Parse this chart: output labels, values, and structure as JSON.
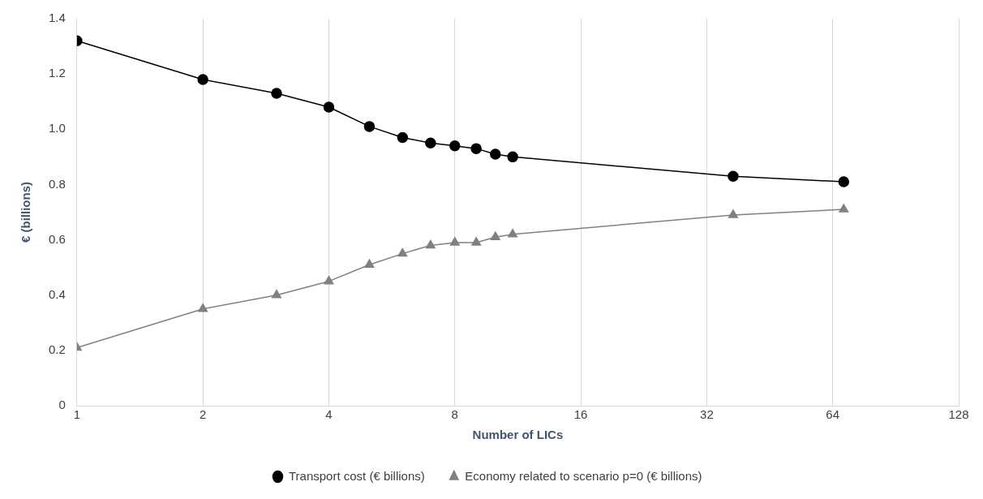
{
  "chart_data": {
    "type": "line",
    "xlabel": "Number of LICs",
    "ylabel": "€ (billions)",
    "x": [
      1,
      2,
      3,
      4,
      5,
      6,
      7,
      8,
      9,
      10,
      11,
      37,
      68
    ],
    "series": [
      {
        "name": "Transport cost (€ billions)",
        "color": "#000000",
        "marker": "circle",
        "values": [
          1.32,
          1.18,
          1.13,
          1.08,
          1.01,
          0.97,
          0.95,
          0.94,
          0.93,
          0.91,
          0.9,
          0.83,
          0.81
        ]
      },
      {
        "name": "Economy related to scenario p=0 (€ billions)",
        "color": "#808080",
        "marker": "triangle",
        "values": [
          0.21,
          0.35,
          0.4,
          0.45,
          0.51,
          0.55,
          0.58,
          0.59,
          0.59,
          0.61,
          0.62,
          0.69,
          0.71
        ]
      }
    ],
    "log": "x",
    "xlim": [
      1,
      128
    ],
    "xticks": [
      1,
      2,
      4,
      8,
      16,
      32,
      64,
      128
    ],
    "ylim": [
      0,
      1.4
    ],
    "yticks": [
      0,
      {
        "value": 0.2,
        "label": "0.2"
      },
      {
        "value": 0.4,
        "label": "0.4"
      },
      {
        "value": 0.6,
        "label": "0.6"
      },
      {
        "value": 0.8,
        "label": "0.8"
      },
      {
        "value": 1.0,
        "label": "1.0"
      },
      {
        "value": 1.2,
        "label": "1.2"
      },
      {
        "value": 1.4,
        "label": "1.4"
      }
    ],
    "grid": "x",
    "legend": "bottom",
    "line_style": "solid"
  }
}
